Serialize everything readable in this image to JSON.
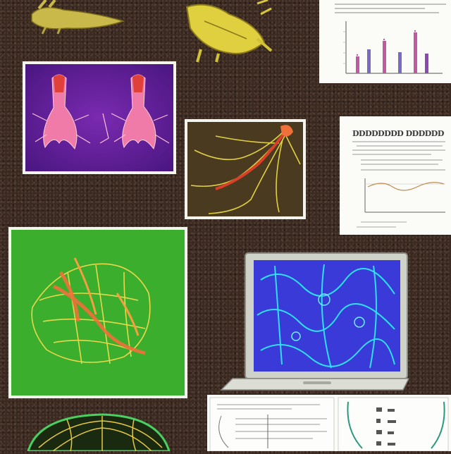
{
  "scene": {
    "background": "#3a2a22"
  },
  "documents": {
    "middle_right": {
      "title": "DDDDDDDD DDDDDDDDDD"
    }
  },
  "colors": {
    "violet_panel": "#5a1f8c",
    "tissue_pink": "#f07aa8",
    "tissue_orange": "#f0703a",
    "green_panel": "#3cae2e",
    "yellow_fiber": "#e8d84a",
    "screen_blue": "#3a3ad8",
    "screen_cyan": "#2ee0f0"
  }
}
